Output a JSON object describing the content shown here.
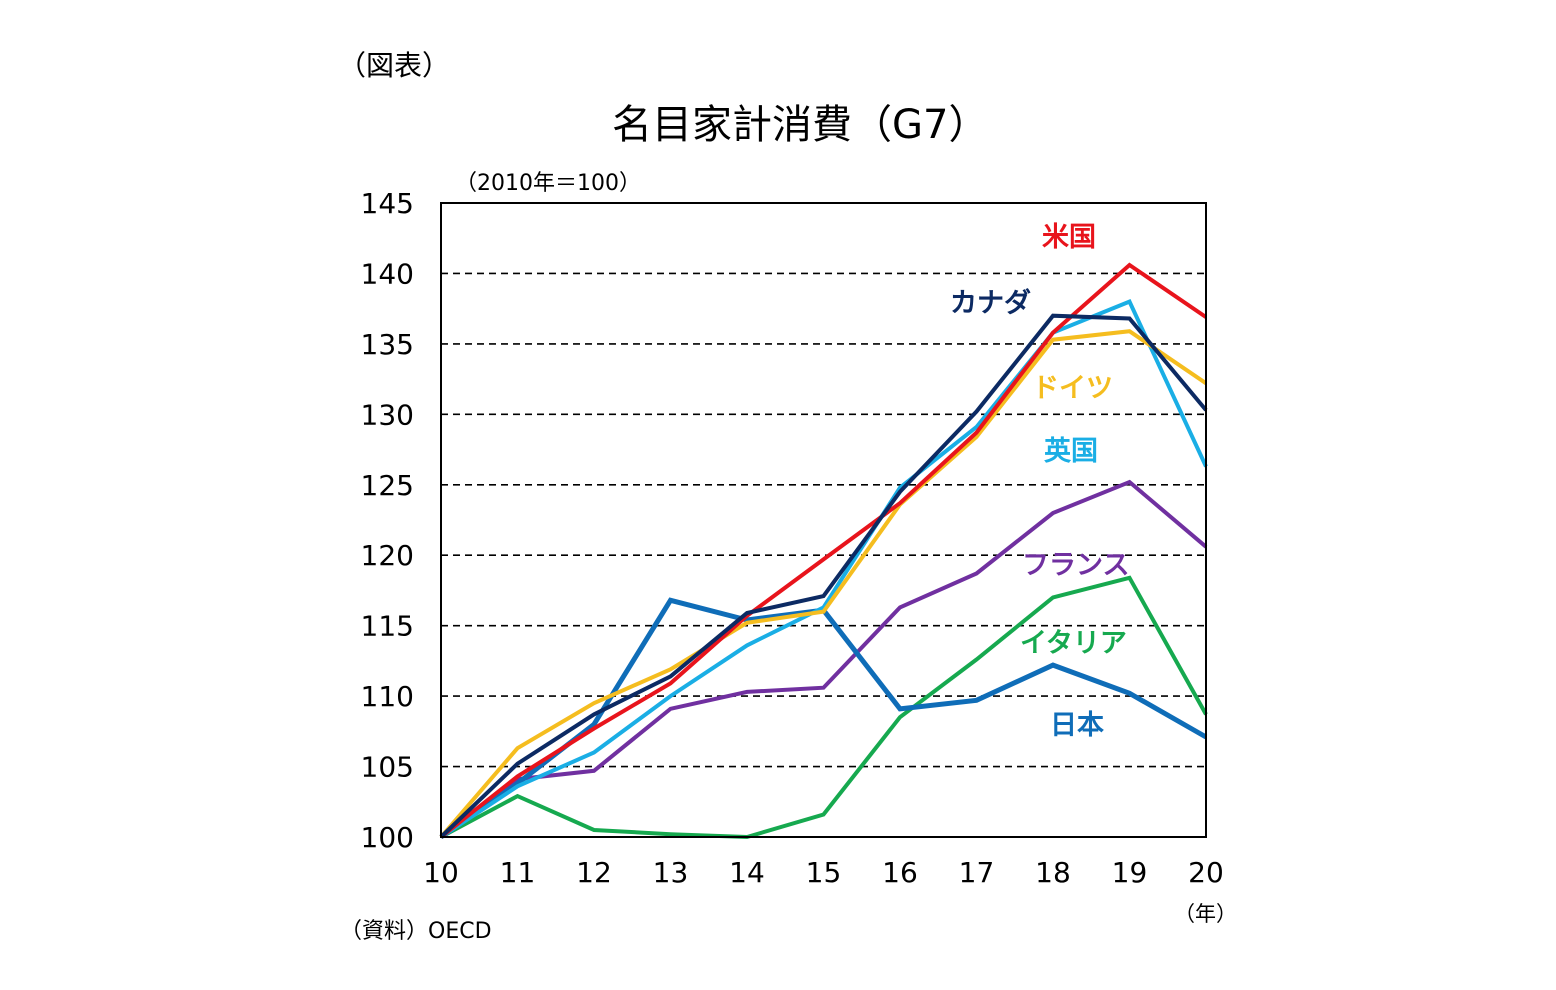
{
  "figure_label": "（図表）",
  "chart_data": {
    "type": "line",
    "title": "名目家計消費（G7）",
    "ylabel": "（2010年＝100）",
    "xlabel": "（年）",
    "source": "（資料）OECD",
    "x": [
      "10",
      "11",
      "12",
      "13",
      "14",
      "15",
      "16",
      "17",
      "18",
      "19",
      "20"
    ],
    "ylim": [
      100,
      145
    ],
    "yticks": [
      "100",
      "105",
      "110",
      "115",
      "120",
      "125",
      "130",
      "135",
      "140",
      "145"
    ],
    "grid": "horizontal-dashed",
    "series": [
      {
        "name": "米国",
        "color": "#e8141c",
        "values": [
          100,
          104.3,
          107.7,
          110.9,
          115.7,
          119.7,
          123.7,
          128.7,
          135.8,
          140.6,
          136.9
        ]
      },
      {
        "name": "カナダ",
        "color": "#0c2a63",
        "values": [
          100,
          105.2,
          108.7,
          111.4,
          115.9,
          117.1,
          124.5,
          130.2,
          137.0,
          136.8,
          130.3
        ]
      },
      {
        "name": "ドイツ",
        "color": "#f5bd1f",
        "values": [
          100,
          106.3,
          109.5,
          111.9,
          115.2,
          116.0,
          123.6,
          128.4,
          135.3,
          135.9,
          132.2
        ]
      },
      {
        "name": "英国",
        "color": "#1aaee5",
        "values": [
          100,
          103.6,
          106.0,
          110.0,
          113.6,
          116.3,
          124.8,
          129.1,
          135.8,
          138.0,
          126.3
        ]
      },
      {
        "name": "フランス",
        "color": "#7030a0",
        "values": [
          100,
          104.1,
          104.7,
          109.1,
          110.3,
          110.6,
          116.3,
          118.7,
          123.0,
          125.2,
          120.6
        ]
      },
      {
        "name": "イタリア",
        "color": "#16a94f",
        "values": [
          100,
          102.9,
          100.5,
          100.2,
          100.0,
          101.6,
          108.5,
          112.6,
          117.0,
          118.4,
          108.7
        ]
      },
      {
        "name": "日本",
        "color": "#0f6db8",
        "values": [
          100,
          103.8,
          108.0,
          116.8,
          115.4,
          116.1,
          109.1,
          109.7,
          112.2,
          110.2,
          107.1
        ]
      }
    ]
  }
}
